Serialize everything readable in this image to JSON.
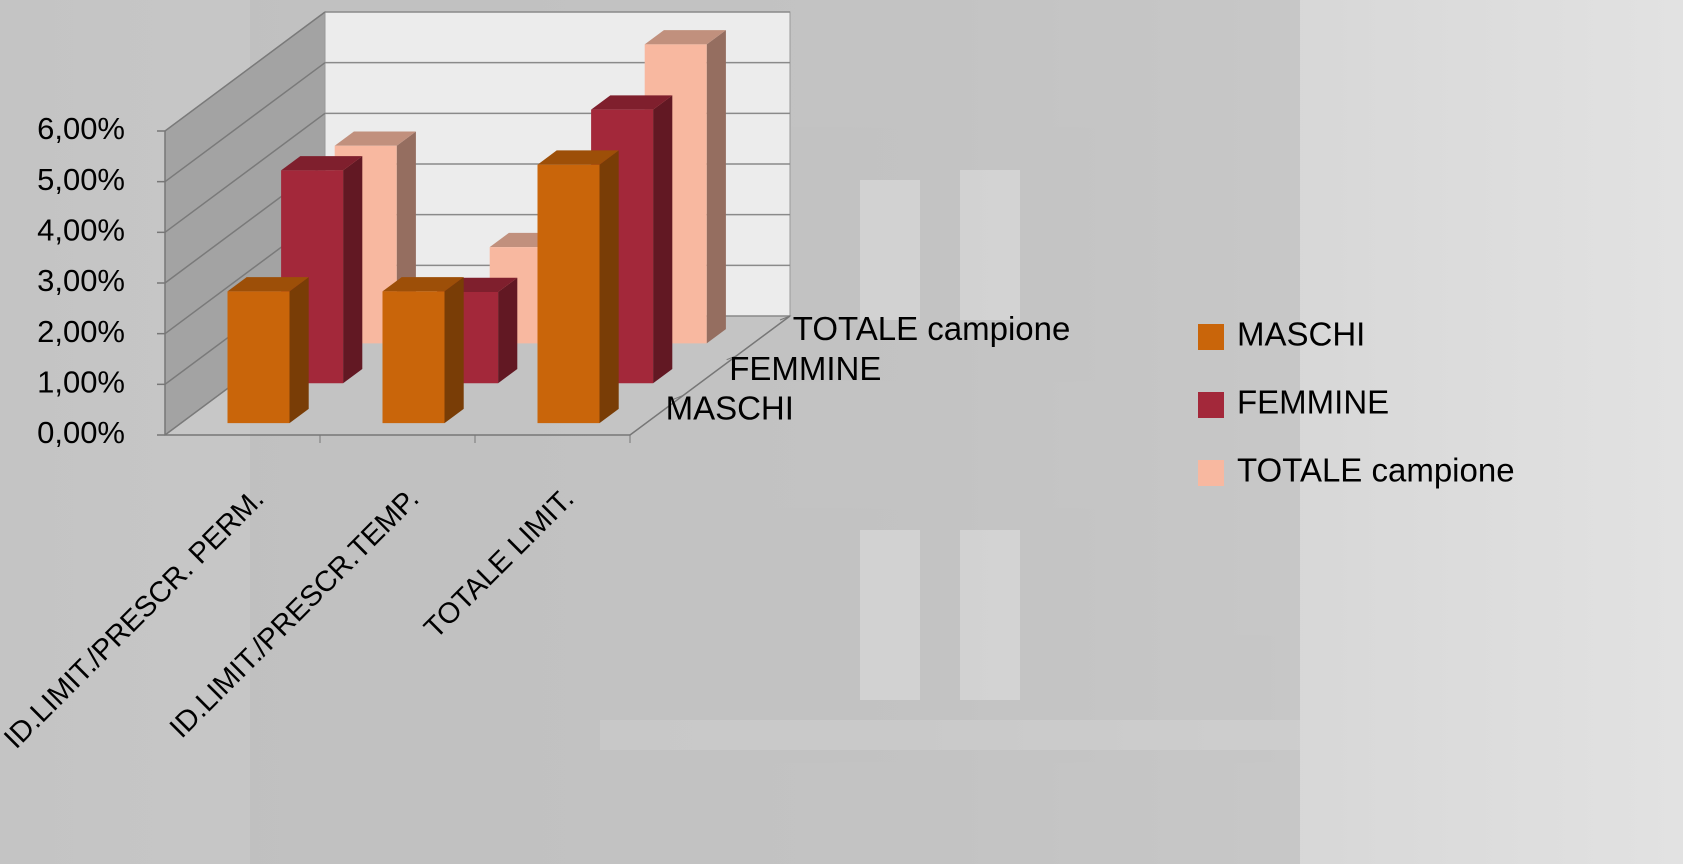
{
  "chart_data": {
    "type": "bar3d",
    "categories": [
      "ID.LIMIT./PRESCR. PERM.",
      "ID.LIMIT./PRESCR.TEMP.",
      "TOTALE LIMIT."
    ],
    "series": [
      {
        "name": "MASCHI",
        "color": "#c9650a",
        "values": [
          2.6,
          2.6,
          5.1
        ]
      },
      {
        "name": "FEMMINE",
        "color": "#a3283a",
        "values": [
          4.2,
          1.8,
          5.4
        ]
      },
      {
        "name": "TOTALE campione",
        "color": "#f8b8a0",
        "values": [
          3.9,
          1.9,
          5.9
        ]
      }
    ],
    "ylim": [
      0,
      6
    ],
    "yticks": [
      {
        "value": 0,
        "label": "0,00%"
      },
      {
        "value": 1,
        "label": "1,00%"
      },
      {
        "value": 2,
        "label": "2,00%"
      },
      {
        "value": 3,
        "label": "3,00%"
      },
      {
        "value": 4,
        "label": "4,00%"
      },
      {
        "value": 5,
        "label": "5,00%"
      },
      {
        "value": 6,
        "label": "6,00%"
      }
    ],
    "grid": true,
    "legend": "right"
  }
}
